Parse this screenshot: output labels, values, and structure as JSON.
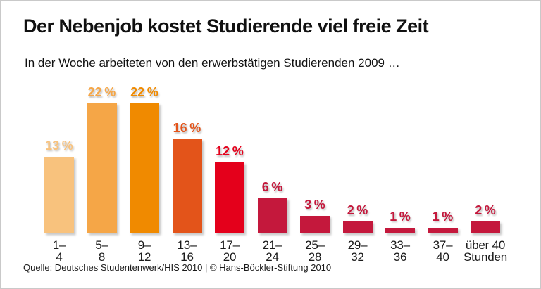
{
  "header": {
    "title": "Der Nebenjob kostet Studierende viel freie Zeit",
    "subtitle": "In der Woche arbeiteten von den erwerbstätigen Studierenden 2009 …"
  },
  "chart_data": {
    "type": "bar",
    "title": "Der Nebenjob kostet Studierende viel freie Zeit",
    "subtitle": "In der Woche arbeiteten von den erwerbstätigen Studierenden 2009 …",
    "categories": [
      "1–4",
      "5–8",
      "9–12",
      "13–16",
      "17–20",
      "21–24",
      "25–28",
      "29–32",
      "33–36",
      "37–40",
      "über 40\nStunden"
    ],
    "values": [
      13,
      22,
      22,
      16,
      12,
      6,
      3,
      2,
      1,
      1,
      2
    ],
    "value_suffix": "%",
    "bar_colors": [
      "#f8c27d",
      "#f5a647",
      "#f08a00",
      "#e3541a",
      "#e4001b",
      "#c4183c",
      "#c4183c",
      "#c4183c",
      "#c4183c",
      "#c4183c",
      "#c4183c"
    ],
    "xlabel": "",
    "ylabel": "",
    "ylim": [
      0,
      24
    ],
    "grid": false,
    "legend": false,
    "value_labels_shown": true
  },
  "footer": {
    "source": "Quelle: Deutsches Studentenwerk/HIS 2010 | © Hans-Böckler-Stiftung 2010"
  }
}
